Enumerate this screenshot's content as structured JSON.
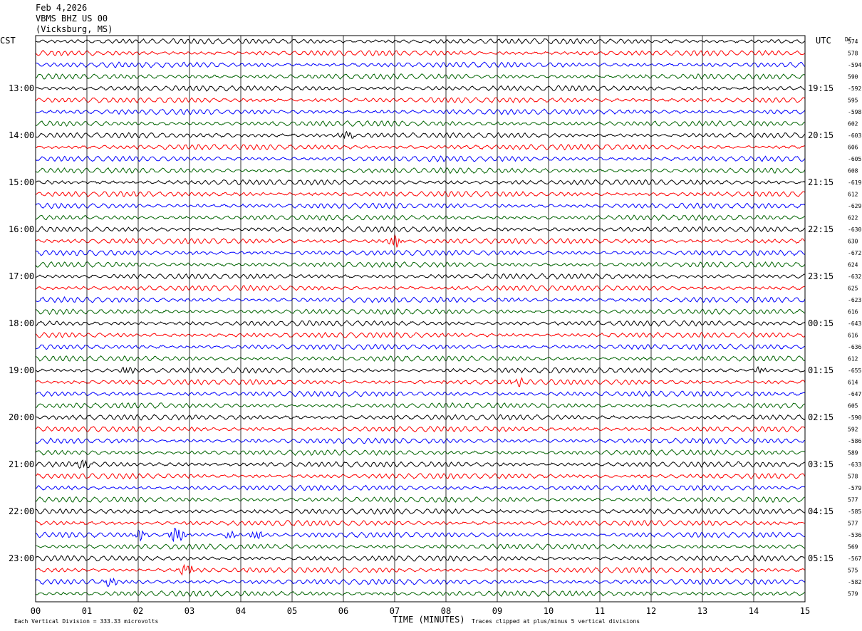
{
  "header": {
    "date": "Feb 4,2026",
    "station": "VBMS BHZ US 00",
    "location": "(Vicksburg, MS)"
  },
  "chart_data": {
    "type": "line",
    "title": "VBMS BHZ US 00",
    "left_axis_label": "CST",
    "right_axis_label": "UTC",
    "dc_label": "DC",
    "xlabel": "TIME (MINUTES)",
    "xlim": [
      0,
      15
    ],
    "x_ticks": [
      "00",
      "01",
      "02",
      "03",
      "04",
      "05",
      "06",
      "07",
      "08",
      "09",
      "10",
      "11",
      "12",
      "13",
      "14",
      "15"
    ],
    "rows_per_hour": 4,
    "row_colors": [
      "#000000",
      "#ff0000",
      "#0000ff",
      "#006400"
    ],
    "left_hour_labels": [
      "13:00",
      "14:00",
      "15:00",
      "16:00",
      "17:00",
      "18:00",
      "19:00",
      "20:00",
      "21:00",
      "22:00",
      "23:00"
    ],
    "right_hour_labels": [
      "19:15",
      "20:15",
      "21:15",
      "22:15",
      "23:15",
      "00:15",
      "01:15",
      "02:15",
      "03:15",
      "04:15",
      "05:15"
    ],
    "dc_values": [
      "574",
      "578",
      "-594",
      "590",
      "-592",
      "595",
      "-598",
      "602",
      "-603",
      "606",
      "-605",
      "608",
      "-619",
      "612",
      "-629",
      "622",
      "-630",
      "630",
      "-672",
      "624",
      "-632",
      "625",
      "-623",
      "616",
      "-643",
      "616",
      "-636",
      "612",
      "-655",
      "614",
      "-647",
      "605",
      "-590",
      "592",
      "-586",
      "589",
      "-633",
      "578",
      "-579",
      "577",
      "-585",
      "577",
      "-536",
      "569",
      "-567",
      "575",
      "-582",
      "579"
    ],
    "events": [
      {
        "row": 17,
        "minute": 7.0,
        "amplitude": 3.0
      },
      {
        "row": 42,
        "minute": 2.75,
        "amplitude": 4.0
      },
      {
        "row": 42,
        "minute": 2.05,
        "amplitude": 2.2
      },
      {
        "row": 42,
        "minute": 4.3,
        "amplitude": 1.8
      },
      {
        "row": 42,
        "minute": 3.8,
        "amplitude": 1.4
      },
      {
        "row": 45,
        "minute": 2.95,
        "amplitude": 2.5
      },
      {
        "row": 46,
        "minute": 1.45,
        "amplitude": 1.5
      },
      {
        "row": 36,
        "minute": 0.95,
        "amplitude": 1.8
      },
      {
        "row": 28,
        "minute": 1.8,
        "amplitude": 1.5
      },
      {
        "row": 29,
        "minute": 9.4,
        "amplitude": 1.4
      },
      {
        "row": 8,
        "minute": 6.05,
        "amplitude": 1.6
      },
      {
        "row": 28,
        "minute": 14.1,
        "amplitude": 1.2
      }
    ]
  },
  "footer": {
    "scale_text": "Each Vertical Division =  333.33 microvolts",
    "clip_text": "Traces clipped at plus/minus 5 vertical divisions"
  }
}
